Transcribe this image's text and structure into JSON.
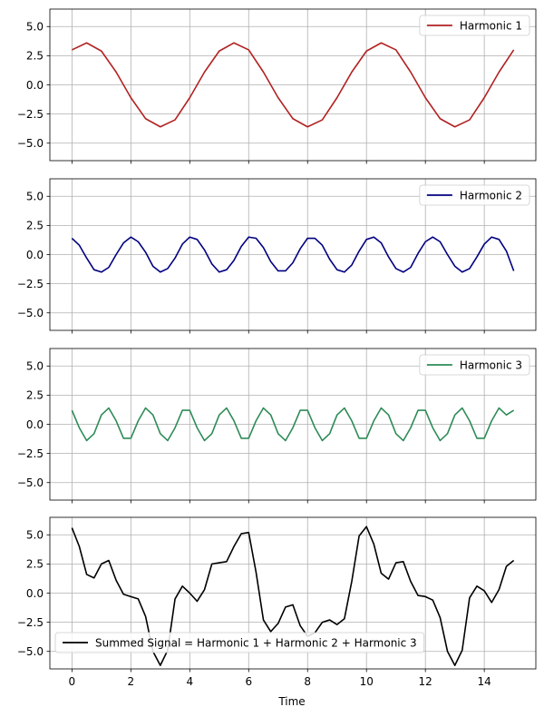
{
  "chart_data": {
    "type": "line",
    "xlabel": "Time",
    "shared_x": true,
    "xlim": [
      -0.75,
      15.75
    ],
    "x_ticks": [
      0,
      2,
      4,
      6,
      8,
      10,
      12,
      14
    ],
    "x_tick_labels": [
      "0",
      "2",
      "4",
      "6",
      "8",
      "10",
      "12",
      "14"
    ],
    "y_ticks": [
      -5.0,
      -2.5,
      0.0,
      2.5,
      5.0
    ],
    "y_tick_labels": [
      "−5.0",
      "−2.5",
      "0.0",
      "2.5",
      "5.0"
    ],
    "grid": true,
    "panels": [
      {
        "legend": "Harmonic 1",
        "color": "#b22222",
        "ylim": [
          -6.5,
          6.5
        ],
        "x": [
          0,
          0.5,
          1,
          1.5,
          2,
          2.5,
          3,
          3.5,
          4,
          4.5,
          5,
          5.5,
          6,
          6.5,
          7,
          7.5,
          8,
          8.5,
          9,
          9.5,
          10,
          10.5,
          11,
          11.5,
          12,
          12.5,
          13,
          13.5,
          14,
          14.5,
          15
        ],
        "values": [
          3.0,
          3.6,
          2.9,
          1.1,
          -1.1,
          -2.9,
          -3.6,
          -3.0,
          -1.1,
          1.1,
          2.9,
          3.6,
          3.0,
          1.1,
          -1.1,
          -2.9,
          -3.6,
          -3.0,
          -1.1,
          1.1,
          2.9,
          3.6,
          3.0,
          1.1,
          -1.1,
          -2.9,
          -3.6,
          -3.0,
          -1.1,
          1.1,
          3.0
        ]
      },
      {
        "legend": "Harmonic 2",
        "color": "#000080",
        "ylim": [
          -6.5,
          6.5
        ],
        "x": [
          0,
          0.25,
          0.5,
          0.75,
          1,
          1.25,
          1.5,
          1.75,
          2,
          2.25,
          2.5,
          2.75,
          3,
          3.25,
          3.5,
          3.75,
          4,
          4.25,
          4.5,
          4.75,
          5,
          5.25,
          5.5,
          5.75,
          6,
          6.25,
          6.5,
          6.75,
          7,
          7.25,
          7.5,
          7.75,
          8,
          8.25,
          8.5,
          8.75,
          9,
          9.25,
          9.5,
          9.75,
          10,
          10.25,
          10.5,
          10.75,
          11,
          11.25,
          11.5,
          11.75,
          12,
          12.25,
          12.5,
          12.75,
          13,
          13.25,
          13.5,
          13.75,
          14,
          14.25,
          14.5,
          14.75,
          15
        ],
        "values": [
          1.4,
          0.8,
          -0.3,
          -1.3,
          -1.5,
          -1.1,
          0.0,
          1.0,
          1.5,
          1.1,
          0.2,
          -1.0,
          -1.5,
          -1.2,
          -0.3,
          0.9,
          1.5,
          1.3,
          0.4,
          -0.8,
          -1.5,
          -1.3,
          -0.5,
          0.7,
          1.5,
          1.4,
          0.6,
          -0.6,
          -1.4,
          -1.4,
          -0.7,
          0.5,
          1.4,
          1.4,
          0.8,
          -0.4,
          -1.3,
          -1.5,
          -0.9,
          0.3,
          1.3,
          1.5,
          1.0,
          -0.2,
          -1.2,
          -1.5,
          -1.1,
          0.1,
          1.1,
          1.5,
          1.1,
          0.0,
          -1.0,
          -1.5,
          -1.2,
          -0.2,
          0.9,
          1.5,
          1.3,
          0.3,
          -1.4
        ]
      },
      {
        "legend": "Harmonic 3",
        "color": "#2e8b57",
        "ylim": [
          -6.5,
          6.5
        ],
        "x": [
          0,
          0.25,
          0.5,
          0.75,
          1,
          1.25,
          1.5,
          1.75,
          2,
          2.25,
          2.5,
          2.75,
          3,
          3.25,
          3.5,
          3.75,
          4,
          4.25,
          4.5,
          4.75,
          5,
          5.25,
          5.5,
          5.75,
          6,
          6.25,
          6.5,
          6.75,
          7,
          7.25,
          7.5,
          7.75,
          8,
          8.25,
          8.5,
          8.75,
          9,
          9.25,
          9.5,
          9.75,
          10,
          10.25,
          10.5,
          10.75,
          11,
          11.25,
          11.5,
          11.75,
          12,
          12.25,
          12.5,
          12.75,
          13,
          13.25,
          13.5,
          13.75,
          14,
          14.25,
          14.5,
          14.75,
          15
        ],
        "values": [
          1.2,
          -0.3,
          -1.4,
          -0.8,
          0.8,
          1.4,
          0.3,
          -1.2,
          -1.2,
          0.3,
          1.4,
          0.8,
          -0.8,
          -1.4,
          -0.3,
          1.2,
          1.2,
          -0.3,
          -1.4,
          -0.8,
          0.8,
          1.4,
          0.3,
          -1.2,
          -1.2,
          0.3,
          1.4,
          0.8,
          -0.8,
          -1.4,
          -0.3,
          1.2,
          1.2,
          -0.3,
          -1.4,
          -0.8,
          0.8,
          1.4,
          0.3,
          -1.2,
          -1.2,
          0.3,
          1.4,
          0.8,
          -0.8,
          -1.4,
          -0.3,
          1.2,
          1.2,
          -0.3,
          -1.4,
          -0.8,
          0.8,
          1.4,
          0.3,
          -1.2,
          -1.2,
          0.3,
          1.4,
          0.8,
          1.2
        ]
      },
      {
        "legend": "Summed Signal = Harmonic 1 + Harmonic 2 + Harmonic 3",
        "color": "#000000",
        "ylim": [
          -6.5,
          6.5
        ],
        "x": [
          0,
          0.25,
          0.5,
          0.75,
          1,
          1.25,
          1.5,
          1.75,
          2,
          2.25,
          2.5,
          2.75,
          3,
          3.25,
          3.5,
          3.75,
          4,
          4.25,
          4.5,
          4.75,
          5,
          5.25,
          5.5,
          5.75,
          6,
          6.25,
          6.5,
          6.75,
          7,
          7.25,
          7.5,
          7.75,
          8,
          8.25,
          8.5,
          8.75,
          9,
          9.25,
          9.5,
          9.75,
          10,
          10.25,
          10.5,
          10.75,
          11,
          11.25,
          11.5,
          11.75,
          12,
          12.25,
          12.5,
          12.75,
          13,
          13.25,
          13.5,
          13.75,
          14,
          14.25,
          14.5,
          14.75,
          15
        ],
        "values": [
          5.6,
          4.0,
          1.6,
          1.3,
          2.5,
          2.8,
          1.1,
          -0.1,
          -0.3,
          -0.5,
          -2.0,
          -5.0,
          -6.2,
          -4.9,
          -0.5,
          0.6,
          0.0,
          -0.7,
          0.3,
          2.5,
          2.6,
          2.7,
          4.0,
          5.1,
          5.2,
          1.8,
          -2.3,
          -3.3,
          -2.6,
          -1.2,
          -1.0,
          -2.8,
          -3.7,
          -3.4,
          -2.5,
          -2.3,
          -2.7,
          -2.2,
          1.0,
          4.9,
          5.7,
          4.2,
          1.7,
          1.2,
          2.6,
          2.7,
          1.0,
          -0.2,
          -0.3,
          -0.6,
          -2.1,
          -5.0,
          -6.2,
          -4.9,
          -0.4,
          0.6,
          0.2,
          -0.8,
          0.3,
          2.3,
          2.8
        ]
      }
    ]
  }
}
